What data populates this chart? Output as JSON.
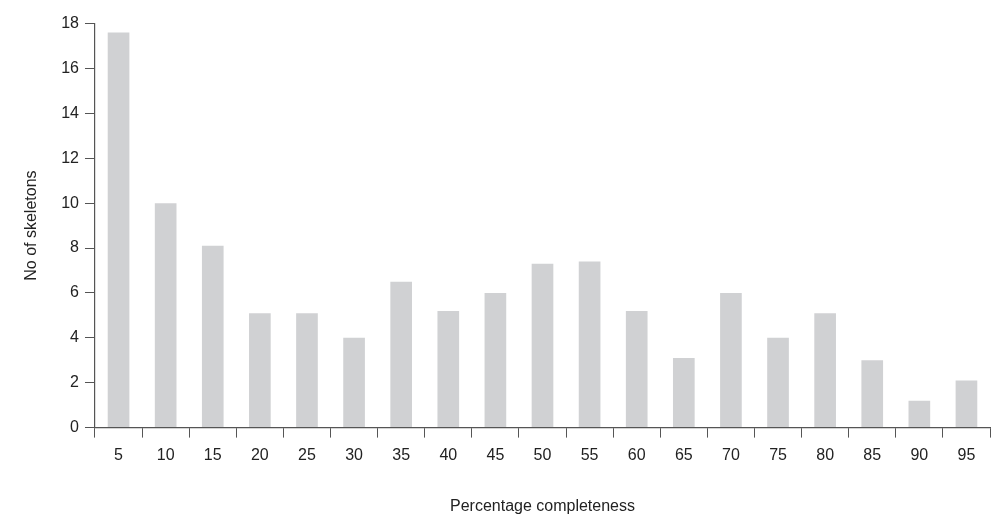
{
  "chart_data": {
    "type": "bar",
    "xlabel": "Percentage completeness",
    "ylabel": "No of skeletons",
    "categories": [
      "5",
      "10",
      "15",
      "20",
      "25",
      "30",
      "35",
      "40",
      "45",
      "50",
      "55",
      "60",
      "65",
      "70",
      "75",
      "80",
      "85",
      "90",
      "95"
    ],
    "values": [
      17.6,
      10.0,
      8.1,
      5.1,
      5.1,
      4.0,
      6.5,
      5.2,
      6.0,
      7.3,
      7.4,
      5.2,
      3.1,
      6.0,
      4.0,
      5.1,
      3.0,
      1.2,
      2.1
    ],
    "color": "#d0d1d3",
    "ylim": [
      0,
      18
    ],
    "yticks": [
      0,
      2,
      4,
      6,
      8,
      10,
      12,
      14,
      16,
      18
    ],
    "grid": false,
    "legend": false
  }
}
